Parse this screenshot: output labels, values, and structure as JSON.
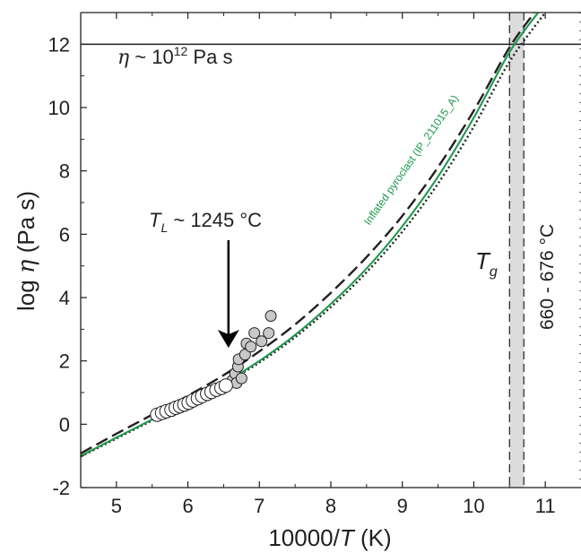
{
  "chart_data": {
    "type": "line",
    "xlabel": {
      "prefix": "10000/",
      "var": "T",
      "suffix": " (K)"
    },
    "ylabel": {
      "prefix": "log ",
      "var": "η",
      "suffix": " (Pa s)"
    },
    "xlim": [
      4.5,
      11.5
    ],
    "ylim": [
      -2,
      13
    ],
    "xticks": [
      5,
      6,
      7,
      8,
      9,
      10,
      11
    ],
    "yticks": [
      -2,
      0,
      2,
      4,
      6,
      8,
      10,
      12
    ],
    "grid": false,
    "hline": {
      "y": 12,
      "label_prefix": "η",
      "label_mid": " ~ 10",
      "label_sup": "12",
      "label_suffix": " Pa s"
    },
    "tg_band": {
      "x_min": 10.5,
      "x_max": 10.7,
      "label": "T",
      "label_sub": "g",
      "range_label": "660 - 676 °C"
    },
    "liquidus": {
      "x": 6.58,
      "label_var": "T",
      "label_sub": "L",
      "label_text": " ~ 1245 °C"
    },
    "curve_label": "Inflated pyroclast (IP_211015_A)",
    "series": [
      {
        "name": "Inflated pyroclast (IP_211015_A)",
        "style": "solid",
        "color": "#1a9a4a",
        "points": [
          [
            4.5,
            -1.0
          ],
          [
            5.0,
            -0.42
          ],
          [
            5.5,
            0.15
          ],
          [
            6.0,
            0.72
          ],
          [
            6.5,
            1.3
          ],
          [
            7.0,
            2.0
          ],
          [
            7.5,
            2.82
          ],
          [
            8.0,
            3.8
          ],
          [
            8.5,
            4.92
          ],
          [
            9.0,
            6.25
          ],
          [
            9.5,
            7.82
          ],
          [
            10.0,
            9.68
          ],
          [
            10.5,
            11.75
          ],
          [
            10.9,
            13.0
          ]
        ]
      },
      {
        "style": "solid",
        "color": "#231f20",
        "points": [
          [
            4.5,
            -1.0
          ],
          [
            5.0,
            -0.42
          ],
          [
            5.5,
            0.15
          ],
          [
            6.0,
            0.72
          ],
          [
            6.5,
            1.3
          ],
          [
            7.0,
            2.0
          ],
          [
            7.5,
            2.82
          ],
          [
            8.0,
            3.8
          ],
          [
            8.5,
            4.92
          ],
          [
            9.0,
            6.25
          ],
          [
            9.5,
            7.82
          ],
          [
            10.0,
            9.68
          ],
          [
            10.5,
            11.75
          ],
          [
            10.9,
            13.0
          ]
        ]
      },
      {
        "style": "dashed",
        "color": "#231f20",
        "points": [
          [
            4.5,
            -0.92
          ],
          [
            5.0,
            -0.3
          ],
          [
            5.5,
            0.3
          ],
          [
            6.0,
            0.9
          ],
          [
            6.5,
            1.55
          ],
          [
            7.0,
            2.3
          ],
          [
            7.5,
            3.15
          ],
          [
            8.0,
            4.15
          ],
          [
            8.5,
            5.28
          ],
          [
            9.0,
            6.58
          ],
          [
            9.5,
            8.12
          ],
          [
            10.0,
            9.9
          ],
          [
            10.5,
            11.9
          ],
          [
            10.85,
            13.0
          ]
        ]
      },
      {
        "style": "dotted",
        "color": "#231f20",
        "points": [
          [
            4.5,
            -1.02
          ],
          [
            5.0,
            -0.45
          ],
          [
            5.5,
            0.12
          ],
          [
            6.0,
            0.7
          ],
          [
            6.5,
            1.28
          ],
          [
            7.0,
            1.95
          ],
          [
            7.5,
            2.75
          ],
          [
            8.0,
            3.7
          ],
          [
            8.5,
            4.8
          ],
          [
            9.0,
            6.08
          ],
          [
            9.5,
            7.6
          ],
          [
            10.0,
            9.4
          ],
          [
            10.5,
            11.45
          ],
          [
            11.0,
            13.0
          ]
        ]
      }
    ],
    "open_points": [
      [
        5.57,
        0.3
      ],
      [
        5.64,
        0.36
      ],
      [
        5.7,
        0.41
      ],
      [
        5.77,
        0.46
      ],
      [
        5.83,
        0.52
      ],
      [
        5.89,
        0.57
      ],
      [
        5.95,
        0.62
      ],
      [
        6.01,
        0.68
      ],
      [
        6.07,
        0.75
      ],
      [
        6.14,
        0.82
      ],
      [
        6.2,
        0.89
      ],
      [
        6.27,
        0.96
      ],
      [
        6.33,
        1.02
      ],
      [
        6.4,
        1.09
      ],
      [
        6.47,
        1.15
      ],
      [
        6.53,
        1.22
      ]
    ],
    "grey_points": [
      [
        6.62,
        1.38
      ],
      [
        6.66,
        1.6
      ],
      [
        6.68,
        1.3
      ],
      [
        6.7,
        1.82
      ],
      [
        6.71,
        2.05
      ],
      [
        6.75,
        1.45
      ],
      [
        6.8,
        2.2
      ],
      [
        6.82,
        2.55
      ],
      [
        6.88,
        2.45
      ],
      [
        6.93,
        2.88
      ],
      [
        7.03,
        2.62
      ],
      [
        7.13,
        2.88
      ],
      [
        7.16,
        3.42
      ]
    ]
  }
}
